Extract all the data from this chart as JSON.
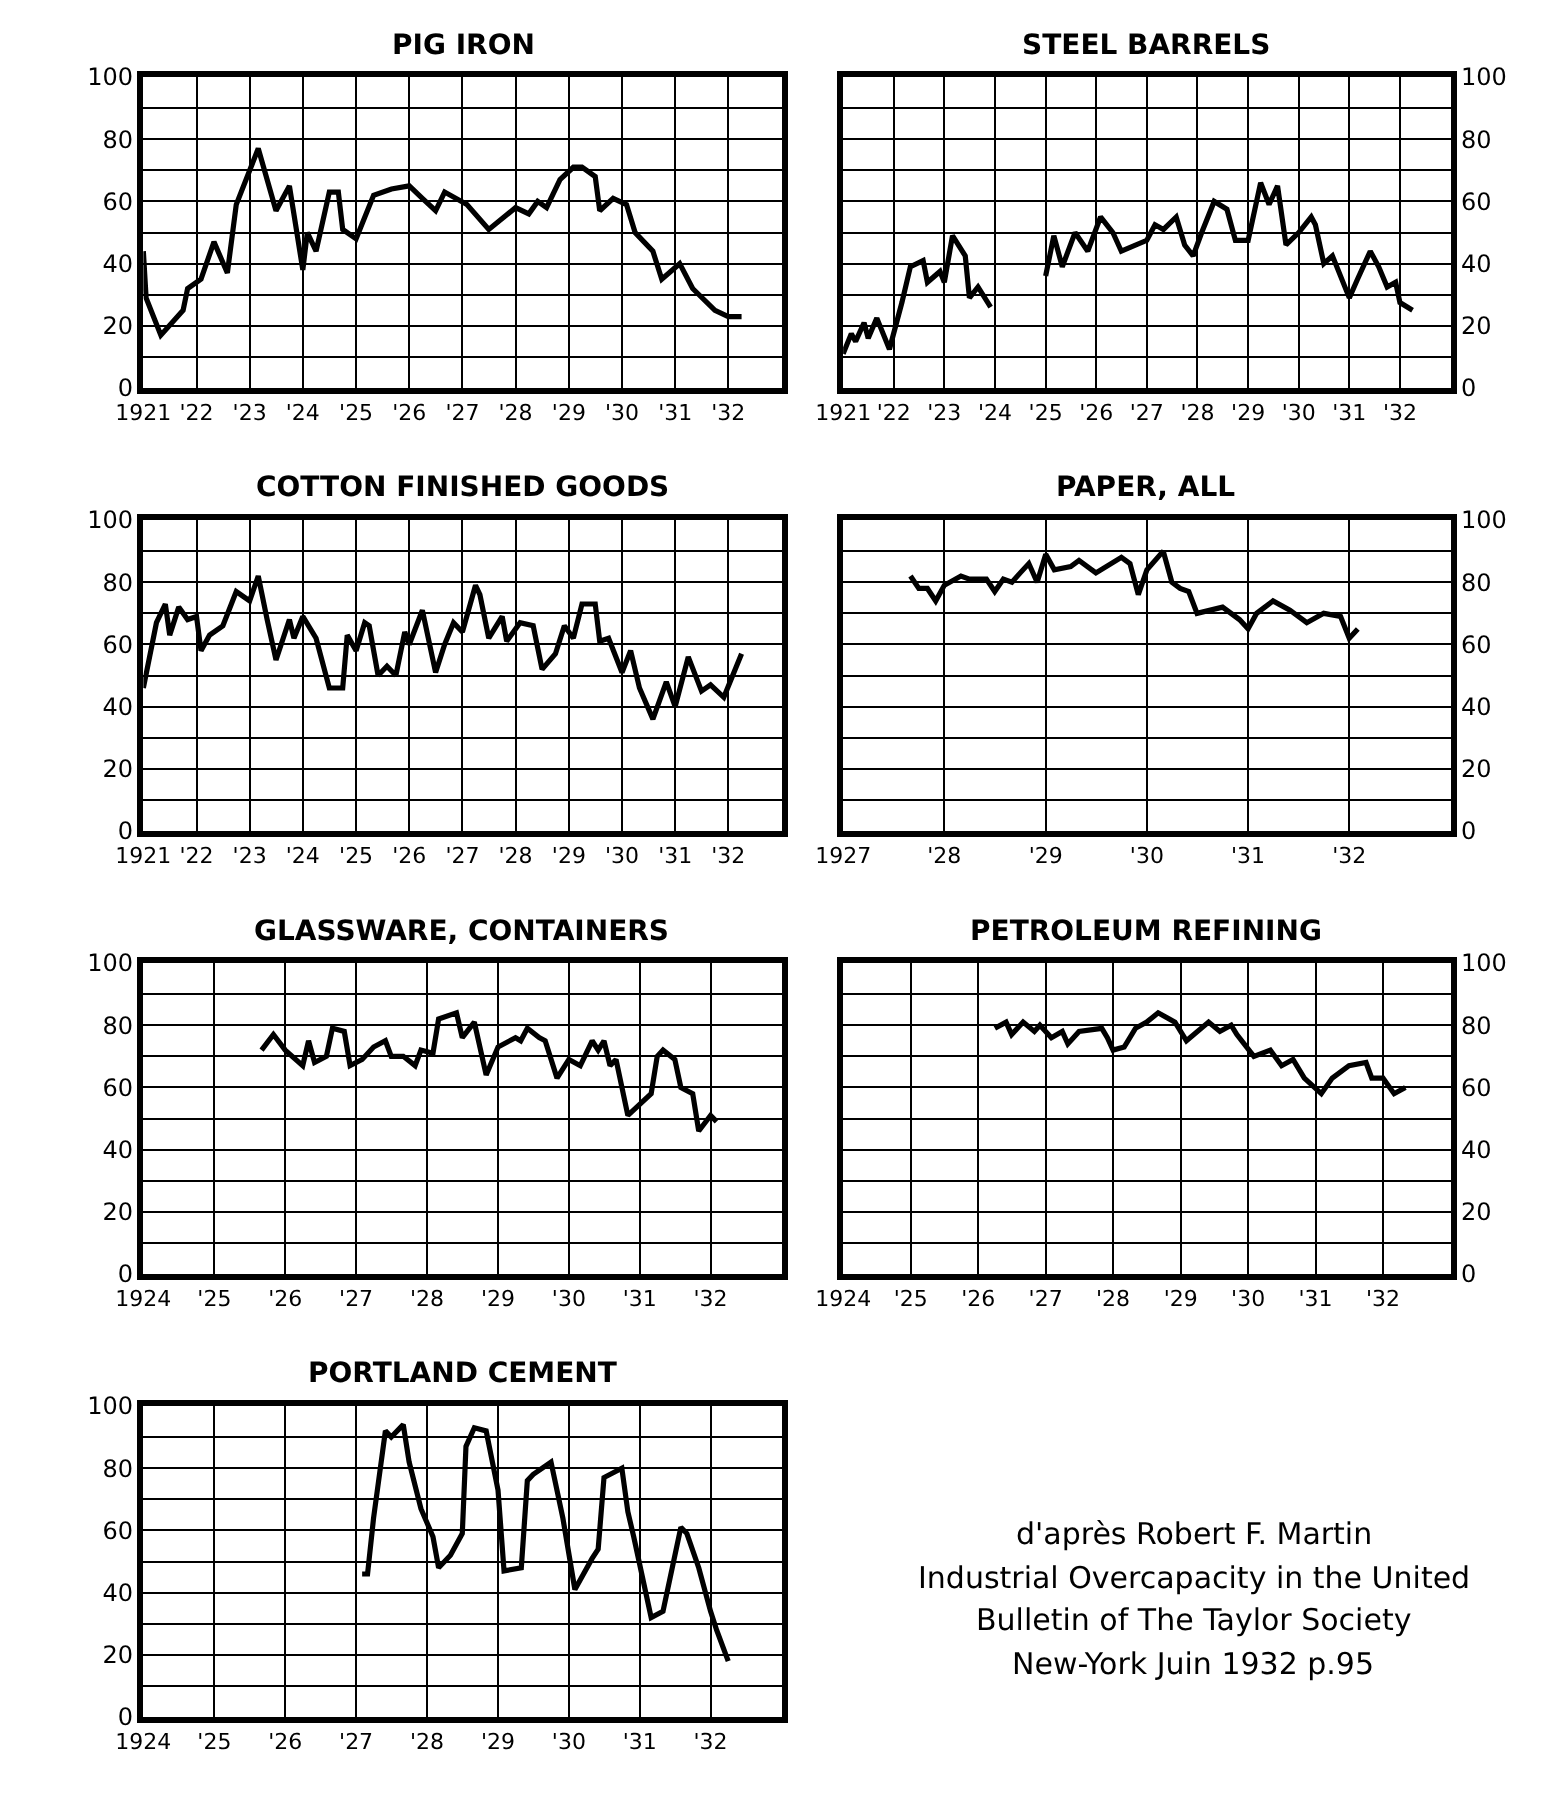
{
  "chart_data": [
    {
      "type": "line",
      "title": "PIG IRON",
      "xlim": [
        "1921",
        "1933"
      ],
      "ylim": [
        0,
        100
      ],
      "yticks": [
        0,
        20,
        40,
        60,
        80,
        100
      ],
      "grid": true,
      "xticks": [
        {
          "value": "1921",
          "label": "1921"
        },
        {
          "value": "1922",
          "label": "'22"
        },
        {
          "value": "1923",
          "label": "'23"
        },
        {
          "value": "1924",
          "label": "'24"
        },
        {
          "value": "1925",
          "label": "'25"
        },
        {
          "value": "1926",
          "label": "'26"
        },
        {
          "value": "1927",
          "label": "'27"
        },
        {
          "value": "1928",
          "label": "'28"
        },
        {
          "value": "1929",
          "label": "'29"
        },
        {
          "value": "1930",
          "label": "'30"
        },
        {
          "value": "1931",
          "label": "'31"
        },
        {
          "value": "1932",
          "label": "'32"
        }
      ],
      "series": [
        {
          "color": "#000000",
          "x": [
            "1921-01-01",
            "1921-01-20",
            "1921-05",
            "1921-10",
            "1921-11",
            "1922-02",
            "1922-05",
            "1922-08",
            "1922-10",
            "1923-03",
            "1923-07",
            "1923-10",
            "1924-01",
            "1924-02",
            "1924-04",
            "1924-07",
            "1924-09",
            "1924-10",
            "1925-01",
            "1925-05",
            "1925-09",
            "1926-01",
            "1926-04",
            "1926-07",
            "1926-09",
            "1927-02",
            "1927-07",
            "1928-01",
            "1928-04",
            "1928-06",
            "1928-08",
            "1928-11",
            "1929-02",
            "1929-04",
            "1929-07",
            "1929-08",
            "1929-11",
            "1930-02",
            "1930-04",
            "1930-08",
            "1930-10",
            "1931-02",
            "1931-05",
            "1931-10",
            "1932-01",
            "1932-04"
          ],
          "values": [
            44,
            29,
            17,
            25,
            32,
            35,
            47,
            37,
            59,
            77,
            57,
            65,
            38,
            50,
            44,
            63,
            63,
            51,
            48,
            62,
            64,
            65,
            61,
            57,
            63,
            59,
            51,
            58,
            56,
            60,
            58,
            67,
            71,
            71,
            68,
            57,
            61,
            59,
            50,
            44,
            35,
            40,
            32,
            25,
            23,
            23
          ]
        }
      ]
    },
    {
      "type": "line",
      "title": "STEEL BARRELS",
      "xlim": [
        "1921",
        "1933"
      ],
      "y2lim": [
        0,
        100
      ],
      "y2ticks": [
        0,
        20,
        40,
        60,
        80,
        100
      ],
      "grid": true,
      "xticks": [
        {
          "value": "1921",
          "label": "1921"
        },
        {
          "value": "1922",
          "label": "'22"
        },
        {
          "value": "1923",
          "label": "'23"
        },
        {
          "value": "1924",
          "label": "'24"
        },
        {
          "value": "1925",
          "label": "'25"
        },
        {
          "value": "1926",
          "label": "'26"
        },
        {
          "value": "1927",
          "label": "'27"
        },
        {
          "value": "1928",
          "label": "'28"
        },
        {
          "value": "1929",
          "label": "'29"
        },
        {
          "value": "1930",
          "label": "'30"
        },
        {
          "value": "1931",
          "label": "'31"
        },
        {
          "value": "1932",
          "label": "'32"
        }
      ],
      "series": [
        {
          "color": "#000000",
          "axis": "y2",
          "x": [
            "1921-01",
            "1921-03",
            "1921-04",
            "1921-06",
            "1921-07",
            "1921-09",
            "1921-12",
            "1922-03",
            "1922-05",
            "1922-08",
            "1922-09",
            "1922-12",
            "1923-01",
            "1923-03",
            "1923-06",
            "1923-07",
            "1923-09",
            "1923-12",
            "1924-07",
            "1925-01",
            "1925-03",
            "1925-05",
            "1925-08",
            "1925-11",
            "1926-02",
            "1926-05",
            "1926-07",
            "1927-01",
            "1927-03",
            "1927-05",
            "1927-08",
            "1927-10",
            "1927-12",
            "1928-02",
            "1928-05",
            "1928-08",
            "1928-10",
            "1929-01",
            "1929-04",
            "1929-06",
            "1929-08",
            "1929-10",
            "1930-01",
            "1930-04",
            "1930-05",
            "1930-07",
            "1930-09",
            "1931-01",
            "1931-03",
            "1931-06",
            "1931-08",
            "1931-10",
            "1931-12",
            "1932-01",
            "1932-04"
          ],
          "values": [
            11,
            17.5,
            15,
            21,
            16,
            22.5,
            12.5,
            27.5,
            39,
            41,
            34,
            37.5,
            34,
            49,
            42.5,
            29,
            32.5,
            26,
            null,
            36,
            49,
            39,
            50,
            44,
            55,
            50,
            44,
            47.5,
            52.5,
            51,
            55,
            46,
            42.5,
            50,
            60,
            57.5,
            47.5,
            47.5,
            66,
            59,
            65,
            46,
            50,
            55,
            52.5,
            40,
            42.5,
            29,
            35,
            44,
            39,
            32.5,
            34,
            27.5,
            25
          ]
        }
      ]
    },
    {
      "type": "line",
      "title": "COTTON FINISHED GOODS",
      "xlim": [
        "1921",
        "1933"
      ],
      "ylim": [
        0,
        100
      ],
      "yticks": [
        0,
        20,
        40,
        60,
        80,
        100
      ],
      "grid": true,
      "xticks": [
        {
          "value": "1921",
          "label": "1921"
        },
        {
          "value": "1922",
          "label": "'22"
        },
        {
          "value": "1923",
          "label": "'23"
        },
        {
          "value": "1924",
          "label": "'24"
        },
        {
          "value": "1925",
          "label": "'25"
        },
        {
          "value": "1926",
          "label": "'26"
        },
        {
          "value": "1927",
          "label": "'27"
        },
        {
          "value": "1928",
          "label": "'28"
        },
        {
          "value": "1929",
          "label": "'29"
        },
        {
          "value": "1930",
          "label": "'30"
        },
        {
          "value": "1931",
          "label": "'31"
        },
        {
          "value": "1932",
          "label": "'32"
        }
      ],
      "series": [
        {
          "color": "#000000",
          "x": [
            "1921-01",
            "1921-04",
            "1921-06",
            "1921-07",
            "1921-09",
            "1921-11",
            "1922-01",
            "1922-02",
            "1922-04",
            "1922-07",
            "1922-10",
            "1923-01",
            "1923-03",
            "1923-05",
            "1923-07",
            "1923-10",
            "1923-11",
            "1924-01",
            "1924-04",
            "1924-07",
            "1924-10",
            "1924-11",
            "1925-01",
            "1925-03",
            "1925-04",
            "1925-06",
            "1925-08",
            "1925-10",
            "1925-12",
            "1926-01",
            "1926-04",
            "1926-07",
            "1926-09",
            "1926-11",
            "1927-01",
            "1927-04",
            "1927-05",
            "1927-07",
            "1927-10",
            "1927-11",
            "1928-02",
            "1928-05",
            "1928-07",
            "1928-10",
            "1928-12",
            "1929-02",
            "1929-04",
            "1929-07",
            "1929-08",
            "1929-10",
            "1930-01",
            "1930-03",
            "1930-05",
            "1930-08",
            "1930-11",
            "1931-01",
            "1931-04",
            "1931-07",
            "1931-09",
            "1931-12",
            "1932-04"
          ],
          "values": [
            46,
            67,
            73,
            63,
            72,
            68,
            69,
            58,
            63,
            66,
            77,
            74,
            82,
            68,
            55,
            68,
            62,
            69,
            62,
            46,
            46,
            63,
            58,
            67,
            66,
            50,
            53,
            50,
            64,
            60,
            71,
            51,
            60,
            67,
            64,
            79,
            76,
            62,
            69,
            61,
            67,
            66,
            52,
            57,
            66,
            62,
            73,
            73,
            61,
            62,
            51,
            58,
            46,
            36,
            48,
            40,
            56,
            45,
            47,
            43,
            57
          ]
        }
      ]
    },
    {
      "type": "line",
      "title": "PAPER, ALL",
      "xlim": [
        "1927",
        "1933"
      ],
      "y2lim": [
        0,
        100
      ],
      "y2ticks": [
        0,
        20,
        40,
        60,
        80,
        100
      ],
      "grid": true,
      "xticks": [
        {
          "value": "1927",
          "label": "1927"
        },
        {
          "value": "1928",
          "label": "'28"
        },
        {
          "value": "1929",
          "label": "'29"
        },
        {
          "value": "1930",
          "label": "'30"
        },
        {
          "value": "1931",
          "label": "'31"
        },
        {
          "value": "1932",
          "label": "'32"
        }
      ],
      "series": [
        {
          "color": "#000000",
          "axis": "y2",
          "x": [
            "1927-09",
            "1927-10",
            "1927-11",
            "1927-12",
            "1928-01",
            "1928-03",
            "1928-04",
            "1928-06",
            "1928-07",
            "1928-08",
            "1928-09",
            "1928-10",
            "1928-11",
            "1928-12",
            "1929-01",
            "1929-02",
            "1929-04",
            "1929-05",
            "1929-07",
            "1929-10",
            "1929-11",
            "1929-12",
            "1930-01",
            "1930-03",
            "1930-04",
            "1930-05",
            "1930-06",
            "1930-07",
            "1930-10",
            "1930-12",
            "1931-01",
            "1931-02",
            "1931-04",
            "1931-06",
            "1931-08",
            "1931-10",
            "1931-12",
            "1932-01",
            "1932-02"
          ],
          "values": [
            82,
            78,
            78,
            74,
            79,
            82,
            81,
            81,
            77,
            81,
            80,
            83,
            86,
            80,
            89,
            84,
            85,
            87,
            83,
            88,
            86,
            76,
            84,
            90,
            80,
            78,
            77,
            70,
            72,
            68,
            65,
            70,
            74,
            71,
            67,
            70,
            69,
            62,
            65
          ]
        }
      ]
    },
    {
      "type": "line",
      "title": "GLASSWARE, CONTAINERS",
      "xlim": [
        "1924",
        "1933"
      ],
      "ylim": [
        0,
        100
      ],
      "yticks": [
        0,
        20,
        40,
        60,
        80,
        100
      ],
      "grid": true,
      "xticks": [
        {
          "value": "1924",
          "label": "1924"
        },
        {
          "value": "1925",
          "label": "'25"
        },
        {
          "value": "1926",
          "label": "'26"
        },
        {
          "value": "1927",
          "label": "'27"
        },
        {
          "value": "1928",
          "label": "'28"
        },
        {
          "value": "1929",
          "label": "'29"
        },
        {
          "value": "1930",
          "label": "'30"
        },
        {
          "value": "1931",
          "label": "'31"
        },
        {
          "value": "1932",
          "label": "'32"
        }
      ],
      "series": [
        {
          "color": "#000000",
          "x": [
            "1925-09",
            "1925-11",
            "1926-01",
            "1926-04",
            "1926-05",
            "1926-06",
            "1926-08",
            "1926-09",
            "1926-11",
            "1926-12",
            "1927-02",
            "1927-04",
            "1927-06",
            "1927-07",
            "1927-09",
            "1927-11",
            "1927-12",
            "1928-02",
            "1928-03",
            "1928-06",
            "1928-07",
            "1928-09",
            "1928-11",
            "1929-01",
            "1929-04-01",
            "1929-04-28",
            "1929-06",
            "1929-08",
            "1929-09",
            "1929-11",
            "1930-01",
            "1930-03",
            "1930-05",
            "1930-06",
            "1930-07",
            "1930-08",
            "1930-09",
            "1930-11",
            "1931-03",
            "1931-04",
            "1931-05",
            "1931-07",
            "1931-08",
            "1931-10",
            "1931-11",
            "1932-01",
            "1932-02"
          ],
          "values": [
            72,
            77,
            72,
            67,
            75,
            68,
            70,
            79,
            78,
            67,
            69,
            73,
            75,
            70,
            70,
            67,
            72,
            71,
            82,
            84,
            76,
            81,
            64,
            73,
            76,
            75,
            79,
            76,
            75,
            63,
            69,
            67,
            75,
            72,
            75,
            67,
            69,
            51,
            58,
            70,
            72,
            69,
            60,
            58,
            46,
            51,
            49
          ]
        }
      ]
    },
    {
      "type": "line",
      "title": "PETROLEUM REFINING",
      "xlim": [
        "1924",
        "1933"
      ],
      "y2lim": [
        0,
        100
      ],
      "y2ticks": [
        0,
        20,
        40,
        60,
        80,
        100
      ],
      "grid": true,
      "xticks": [
        {
          "value": "1924",
          "label": "1924"
        },
        {
          "value": "1925",
          "label": "'25"
        },
        {
          "value": "1926",
          "label": "'26"
        },
        {
          "value": "1927",
          "label": "'27"
        },
        {
          "value": "1928",
          "label": "'28"
        },
        {
          "value": "1929",
          "label": "'29"
        },
        {
          "value": "1930",
          "label": "'30"
        },
        {
          "value": "1931",
          "label": "'31"
        },
        {
          "value": "1932",
          "label": "'32"
        }
      ],
      "series": [
        {
          "color": "#000000",
          "axis": "y2",
          "x": [
            "1926-04",
            "1926-06",
            "1926-07",
            "1926-09",
            "1926-11",
            "1926-12",
            "1927-02",
            "1927-04",
            "1927-05",
            "1927-07",
            "1927-11",
            "1927-12",
            "1928-01",
            "1928-03",
            "1928-05",
            "1928-07",
            "1928-09",
            "1928-12",
            "1929-02",
            "1929-06",
            "1929-08",
            "1929-10",
            "1929-11",
            "1930-02",
            "1930-05",
            "1930-07",
            "1930-09",
            "1930-11",
            "1931-02",
            "1931-04",
            "1931-07",
            "1931-10",
            "1931-11",
            "1932-01",
            "1932-03",
            "1932-05"
          ],
          "values": [
            79,
            81,
            77,
            81,
            78,
            80,
            76,
            78,
            74,
            78,
            79,
            76,
            72,
            73,
            79,
            81,
            84,
            81,
            75,
            81,
            78,
            80,
            77,
            70,
            72,
            67,
            69,
            63,
            58,
            63,
            67,
            68,
            63,
            63,
            58,
            60
          ]
        }
      ]
    },
    {
      "type": "line",
      "title": "PORTLAND CEMENT",
      "xlim": [
        "1924",
        "1933"
      ],
      "ylim": [
        0,
        100
      ],
      "yticks": [
        0,
        20,
        40,
        60,
        80,
        100
      ],
      "grid": true,
      "xticks": [
        {
          "value": "1924",
          "label": "1924"
        },
        {
          "value": "1925",
          "label": "'25"
        },
        {
          "value": "1926",
          "label": "'26"
        },
        {
          "value": "1927",
          "label": "'27"
        },
        {
          "value": "1928",
          "label": "'28"
        },
        {
          "value": "1929",
          "label": "'29"
        },
        {
          "value": "1930",
          "label": "'30"
        },
        {
          "value": "1931",
          "label": "'31"
        },
        {
          "value": "1932",
          "label": "'32"
        }
      ],
      "series": [
        {
          "color": "#000000",
          "x": [
            "1927-02",
            "1927-03",
            "1927-04",
            "1927-06",
            "1927-07",
            "1927-09",
            "1927-10",
            "1927-12",
            "1928-02",
            "1928-03",
            "1928-05",
            "1928-07-01",
            "1928-07-20",
            "1928-09",
            "1928-11",
            "1929-01",
            "1929-02",
            "1929-05",
            "1929-06",
            "1929-07",
            "1929-10",
            "1929-12",
            "1930-02",
            "1930-05",
            "1930-06",
            "1930-07",
            "1930-10",
            "1930-11",
            "1930-12",
            "1931-03",
            "1931-05",
            "1931-08",
            "1931-09",
            "1931-11",
            "1932-01",
            "1932-02",
            "1932-04"
          ],
          "values": [
            46,
            46,
            64,
            92,
            90,
            94,
            82,
            67,
            58,
            48,
            52,
            59,
            87,
            93,
            92,
            73,
            47,
            48,
            76,
            78,
            82,
            64,
            41,
            51,
            54,
            77,
            80,
            66,
            58,
            32,
            34,
            61,
            59,
            48,
            34,
            28,
            18
          ]
        }
      ]
    },
    {
      "type": "other",
      "annotations": [
        "d'après Robert F. Martin",
        "Industrial Overcapacity in the United",
        "Bulletin of The Taylor Society",
        "New-York Juin 1932 p.95"
      ]
    }
  ]
}
